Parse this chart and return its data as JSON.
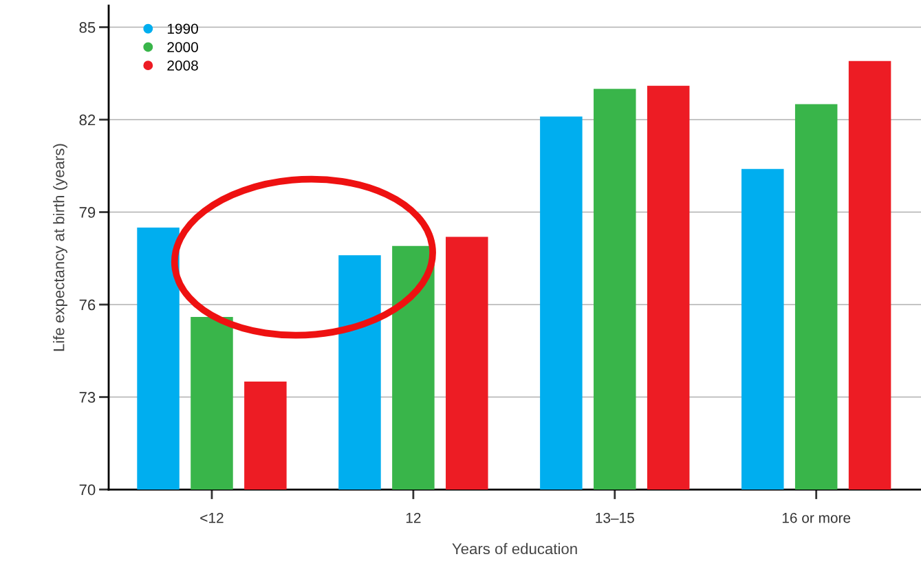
{
  "chart_data": {
    "type": "bar",
    "xlabel": "Years of education",
    "ylabel": "Life expectancy at birth (years)",
    "categories": [
      "<12",
      "12",
      "13–15",
      "16 or more"
    ],
    "series": [
      {
        "name": "1990",
        "color": "#00aeef",
        "values": [
          78.5,
          77.6,
          82.1,
          80.4
        ]
      },
      {
        "name": "2000",
        "color": "#39b54a",
        "values": [
          75.6,
          77.9,
          83.0,
          82.5
        ]
      },
      {
        "name": "2008",
        "color": "#ed1c24",
        "values": [
          73.5,
          78.2,
          83.1,
          83.9
        ]
      }
    ],
    "ylim": [
      70,
      85.7
    ],
    "yticks": [
      70,
      73,
      76,
      79,
      82,
      85
    ],
    "grid": "y",
    "legend": "top left"
  }
}
